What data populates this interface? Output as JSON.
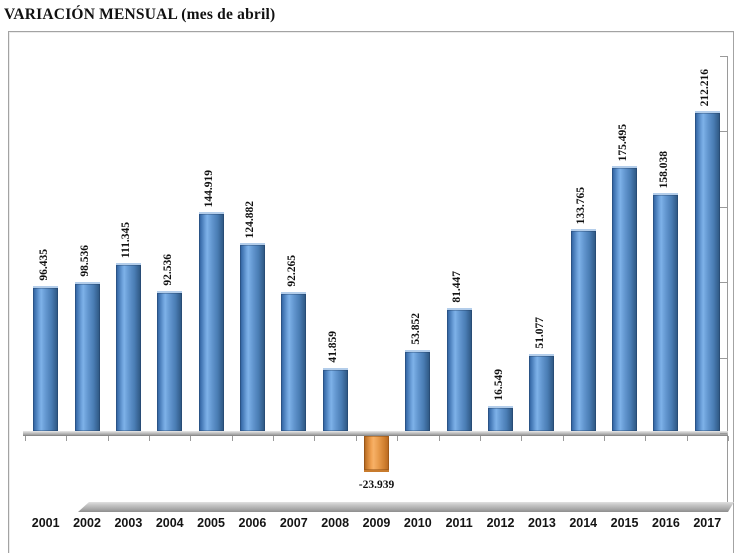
{
  "title": "VARIACIÓN MENSUAL (mes de abril)",
  "chart_data": {
    "type": "bar",
    "title": "VARIACIÓN MENSUAL (mes de abril)",
    "categories": [
      "2001",
      "2002",
      "2003",
      "2004",
      "2005",
      "2006",
      "2007",
      "2008",
      "2009",
      "2010",
      "2011",
      "2012",
      "2013",
      "2014",
      "2015",
      "2016",
      "2017"
    ],
    "values": [
      96.435,
      98.536,
      111.345,
      92.536,
      144.919,
      124.882,
      92.265,
      41.859,
      -23.939,
      53.852,
      81.447,
      16.549,
      51.077,
      133.765,
      175.495,
      158.038,
      212.216
    ],
    "value_labels": [
      "96.435",
      "98.536",
      "111.345",
      "92.536",
      "144.919",
      "124.882",
      "92.265",
      "41.859",
      "-23.939",
      "53.852",
      "81.447",
      "16.549",
      "51.077",
      "133.765",
      "175.495",
      "158.038",
      "212.216"
    ],
    "xlabel": "",
    "ylabel": "",
    "ylim": [
      -50,
      250
    ],
    "axis_tick_step": 50,
    "value_axis_side": "right",
    "value_axis_labels_visible": false,
    "grid": false,
    "legend": false,
    "bar_color_positive": "#5b93ce",
    "bar_color_negative": "#ec9546",
    "positive_label_rotation_deg": 90,
    "negative_label_horizontal": true
  }
}
